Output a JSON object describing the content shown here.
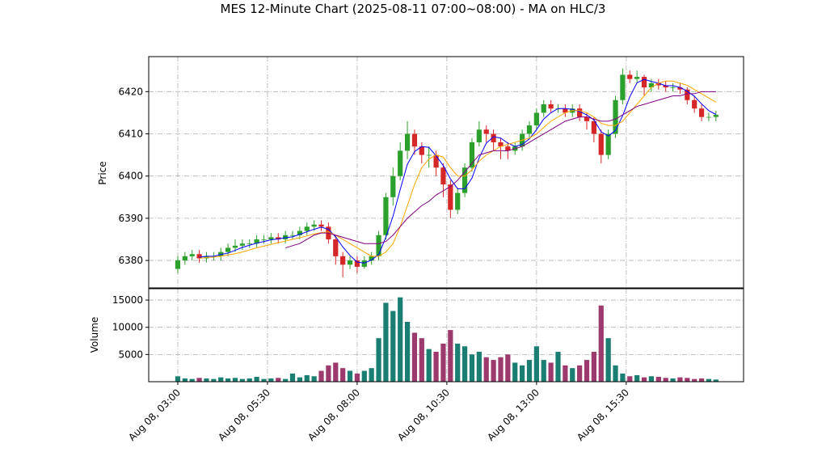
{
  "chart_data": {
    "type": "candlestick",
    "title": "MES 12-Minute Chart (2025-08-11 07:00~08:00) - MA on HLC/3",
    "y_label": "Price",
    "volume_label": "Volume",
    "up_color": "#2ca02c",
    "down_color": "#d62728",
    "volume_up_color": "#1a7f72",
    "volume_down_color": "#9c3a6e",
    "grid": true,
    "xlim": [
      2.19,
      18.77
    ],
    "xticks": [
      {
        "value": 3,
        "label": "Aug 08, 03:00"
      },
      {
        "value": 5.5,
        "label": "Aug 08, 05:30"
      },
      {
        "value": 8,
        "label": "Aug 08, 08:00"
      },
      {
        "value": 10.5,
        "label": "Aug 08, 10:30"
      },
      {
        "value": 13,
        "label": "Aug 08, 13:00"
      },
      {
        "value": 15.5,
        "label": "Aug 08, 15:30"
      }
    ],
    "ylim": [
      6373.5,
      6428.3
    ],
    "yticks": [
      6380,
      6390,
      6400,
      6410,
      6420
    ],
    "volume_lim": [
      0,
      17090
    ],
    "volume_ticks": [
      5000,
      10000,
      15000
    ],
    "x": [
      3,
      3.2,
      3.4,
      3.6,
      3.8,
      4,
      4.2,
      4.4,
      4.6,
      4.8,
      5,
      5.2,
      5.4,
      5.6,
      5.8,
      6,
      6.2,
      6.4,
      6.6,
      6.8,
      7,
      7.2,
      7.4,
      7.6,
      7.8,
      8,
      8.2,
      8.4,
      8.6,
      8.8,
      9,
      9.2,
      9.4,
      9.6,
      9.8,
      10,
      10.2,
      10.4,
      10.6,
      10.8,
      11,
      11.2,
      11.4,
      11.6,
      11.8,
      12,
      12.2,
      12.4,
      12.6,
      12.8,
      13,
      13.2,
      13.4,
      13.6,
      13.8,
      14,
      14.2,
      14.4,
      14.6,
      14.8,
      15,
      15.2,
      15.4,
      15.6,
      15.8,
      16,
      16.2,
      16.4,
      16.6,
      16.8,
      17,
      17.2,
      17.4,
      17.6,
      17.8,
      18
    ],
    "open": [
      6378,
      6380,
      6381,
      6381.5,
      6380.5,
      6381,
      6381,
      6382,
      6383,
      6383.5,
      6384,
      6384,
      6385,
      6385,
      6385.5,
      6385,
      6386,
      6386,
      6387,
      6388,
      6388.5,
      6388,
      6385,
      6381,
      6379,
      6380,
      6378.5,
      6380,
      6381,
      6386,
      6395,
      6400,
      6406,
      6410,
      6407,
      6405,
      6405,
      6402,
      6398,
      6392,
      6396,
      6402,
      6408,
      6411,
      6410,
      6408,
      6407,
      6406,
      6407,
      6410,
      6412,
      6415,
      6417,
      6416,
      6416,
      6415,
      6416,
      6414,
      6413,
      6410,
      6405,
      6410,
      6418,
      6424,
      6423,
      6423.5,
      6421,
      6422,
      6421.5,
      6421,
      6421,
      6420.5,
      6418,
      6416,
      6414,
      6414
    ],
    "high": [
      6381,
      6382,
      6382.5,
      6382.5,
      6382,
      6382,
      6383,
      6384,
      6385,
      6385,
      6385,
      6386,
      6386,
      6386.5,
      6386.5,
      6387,
      6387,
      6388,
      6389,
      6389.5,
      6389.5,
      6389,
      6386,
      6382,
      6381,
      6381,
      6381,
      6382,
      6387,
      6396,
      6402,
      6408,
      6413,
      6411,
      6408,
      6407,
      6406,
      6403,
      6399,
      6397,
      6403,
      6409,
      6413,
      6412,
      6411,
      6409,
      6408,
      6408,
      6411,
      6413,
      6416,
      6418,
      6418,
      6417,
      6417,
      6417,
      6417,
      6415,
      6414,
      6411,
      6411,
      6419,
      6425.5,
      6425,
      6425,
      6424,
      6423,
      6423,
      6422.5,
      6422,
      6422,
      6421,
      6419,
      6417,
      6415,
      6415.5
    ],
    "low": [
      6377,
      6379,
      6380,
      6379.5,
      6379.5,
      6380,
      6380,
      6381,
      6382,
      6382.5,
      6383,
      6383,
      6384,
      6384,
      6384,
      6384,
      6385,
      6385,
      6386,
      6387,
      6387,
      6384,
      6379,
      6376,
      6378,
      6377,
      6378,
      6379,
      6380,
      6385,
      6393,
      6399,
      6404,
      6405,
      6403,
      6402,
      6400,
      6395,
      6390,
      6391,
      6395,
      6401,
      6407,
      6408,
      6406,
      6404,
      6404,
      6405,
      6406,
      6409,
      6411,
      6414,
      6415,
      6415,
      6414,
      6414,
      6413,
      6411,
      6408,
      6403,
      6404,
      6409,
      6417,
      6422,
      6422,
      6419,
      6420,
      6420.5,
      6420,
      6420,
      6419.5,
      6417,
      6415,
      6413,
      6413,
      6413
    ],
    "close": [
      6380,
      6381,
      6381.5,
      6380.5,
      6381,
      6381,
      6382,
      6383,
      6383.5,
      6384,
      6384,
      6385,
      6385,
      6385.5,
      6385,
      6386,
      6386,
      6387,
      6388,
      6388.5,
      6388,
      6385,
      6381,
      6379,
      6380,
      6378.5,
      6380,
      6381,
      6386,
      6395,
      6400,
      6406,
      6410,
      6407,
      6405,
      6405,
      6402,
      6398,
      6392,
      6396,
      6402,
      6408,
      6411,
      6410,
      6408,
      6407,
      6406,
      6407,
      6410,
      6412,
      6415,
      6417,
      6416,
      6416,
      6415,
      6416,
      6414,
      6413,
      6410,
      6405,
      6410,
      6418,
      6424,
      6423,
      6423.5,
      6421,
      6422,
      6421.5,
      6421,
      6421,
      6420.5,
      6418,
      6416,
      6414,
      6414,
      6414.5
    ],
    "volume": [
      1000,
      600,
      500,
      700,
      600,
      500,
      800,
      600,
      700,
      500,
      600,
      900,
      500,
      600,
      700,
      500,
      1500,
      800,
      1200,
      1000,
      2000,
      3000,
      3500,
      2500,
      2000,
      1500,
      2000,
      2500,
      8000,
      14500,
      13000,
      15500,
      11000,
      9000,
      8000,
      6000,
      5500,
      7000,
      9500,
      7000,
      6500,
      5000,
      5500,
      4500,
      4000,
      4500,
      5000,
      3500,
      3000,
      4000,
      6500,
      4000,
      3500,
      5500,
      3000,
      2500,
      3000,
      4000,
      5500,
      14000,
      8000,
      3000,
      1500,
      1000,
      1200,
      800,
      1000,
      900,
      700,
      600,
      800,
      700,
      500,
      600,
      500,
      400
    ],
    "ma_lines": [
      {
        "color": "#0000ff",
        "values": [
          null,
          null,
          null,
          6380.75,
          6381,
          6381,
          6381.4,
          6381.75,
          6382.4,
          6383.1,
          6383.6,
          6384.1,
          6384.5,
          6384.9,
          6385.1,
          6385.4,
          6385.6,
          6386.2,
          6386.8,
          6387.4,
          6387.9,
          6387.4,
          6385.6,
          6383.2,
          6381.2,
          6379.6,
          6379.4,
          6380.1,
          6381.4,
          6385.5,
          6390.5,
          6396.8,
          6402.8,
          6405.8,
          6407,
          6406.8,
          6404.8,
          6402.5,
          6399.3,
          6397,
          6397,
          6399.5,
          6404.3,
          6407.8,
          6409.3,
          6409,
          6407.8,
          6407,
          6407.5,
          6408.8,
          6411,
          6413.5,
          6415,
          6416,
          6416,
          6415.8,
          6415.3,
          6414.5,
          6413.3,
          6410.5,
          6409.5,
          6410.8,
          6414.3,
          6418.8,
          6422.1,
          6422.9,
          6422.4,
          6422,
          6421.4,
          6421.4,
          6421,
          6420.1,
          6418.9,
          6417.1,
          6415.5,
          6414.6
        ]
      },
      {
        "color": "#ffa500",
        "values": [
          null,
          null,
          null,
          6380.5,
          6380.7,
          6380.8,
          6381,
          6381.3,
          6381.6,
          6382,
          6382.5,
          6383,
          6383.4,
          6383.8,
          6384.2,
          6384.6,
          6385,
          6385.4,
          6385.8,
          6386.3,
          6386.6,
          6386.8,
          6386,
          6385,
          6384,
          6383,
          6382,
          6381,
          6381,
          6382,
          6384,
          6388,
          6393,
          6398,
          6402,
          6404,
          6405,
          6404.5,
          6402,
          6400,
          6400,
          6401.5,
          6403.5,
          6405,
          6406,
          6407,
          6407.5,
          6408,
          6408.5,
          6409,
          6410,
          6411.5,
          6413,
          6414,
          6415,
          6415.5,
          6415.5,
          6415,
          6414,
          6412.5,
          6412,
          6412,
          6413,
          6415,
          6417,
          6419,
          6421,
          6422,
          6422.5,
          6422.5,
          6422,
          6421.5,
          6420.5,
          6419.5,
          6418.5,
          6417.5
        ]
      },
      {
        "color": "#800080",
        "values": [
          null,
          null,
          null,
          null,
          null,
          null,
          null,
          null,
          null,
          null,
          null,
          null,
          null,
          null,
          null,
          6383,
          6383.5,
          6384,
          6385,
          6386,
          6386.5,
          6386.5,
          6386,
          6385.5,
          6385,
          6384.5,
          6384,
          6384,
          6384,
          6384.5,
          6386,
          6388,
          6390,
          6391.5,
          6393,
          6394,
          6395.5,
          6396.5,
          6397.5,
          6399,
          6401,
          6403,
          6405,
          6405.5,
          6406,
          6406,
          6406,
          6406.5,
          6407,
          6408,
          6409,
          6410,
          6411,
          6412,
          6413,
          6413.5,
          6414,
          6414,
          6413.5,
          6413,
          6413,
          6413.5,
          6414.5,
          6415.5,
          6416.5,
          6417,
          6417.5,
          6418,
          6418.5,
          6419,
          6419,
          6419.5,
          6419.5,
          6420,
          6420,
          6420
        ]
      }
    ]
  }
}
